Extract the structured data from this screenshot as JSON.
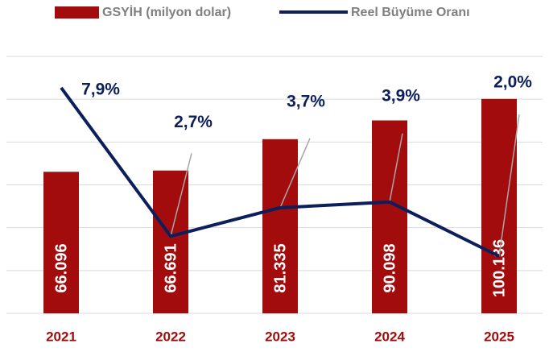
{
  "chart_data": {
    "type": "bar-line",
    "categories": [
      "2021",
      "2022",
      "2023",
      "2024",
      "2025"
    ],
    "series": [
      {
        "name": "GSYİH (milyon dolar)",
        "color": "#a30c0c",
        "type": "bar",
        "values": [
          66096,
          66691,
          81335,
          90098,
          100136
        ],
        "value_labels": [
          "66.096",
          "66.691",
          "81.335",
          "90.098",
          "100.136"
        ]
      },
      {
        "name": "Reel Büyüme Oranı",
        "color": "#0c1f5c",
        "type": "line",
        "axis": "y2",
        "values": [
          7.9,
          2.7,
          3.7,
          3.9,
          2.0
        ],
        "value_labels": [
          "7,9%",
          "2,7%",
          "3,7%",
          "3,9%",
          "2,0%"
        ]
      }
    ],
    "ylim": [
      0,
      120000
    ],
    "yticks": [
      0,
      20000,
      40000,
      60000,
      80000,
      100000,
      120000
    ],
    "y2lim": [
      0,
      9
    ],
    "grid": true,
    "legend": "top"
  }
}
